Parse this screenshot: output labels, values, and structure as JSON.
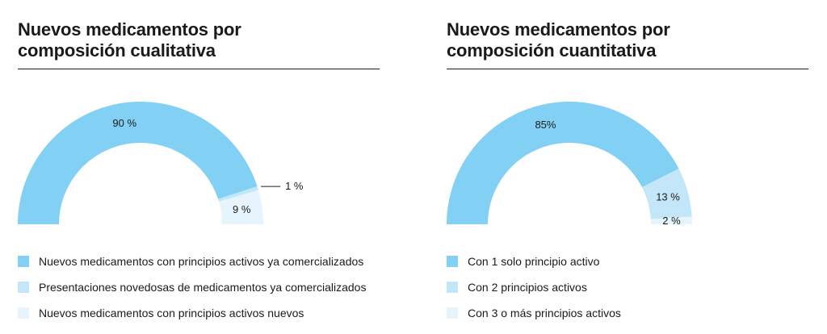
{
  "chart_data": [
    {
      "type": "pie",
      "shape": "half-donut",
      "title": "Nuevos medicamentos por composición cualitativa",
      "title_lines": [
        "Nuevos medicamentos por",
        "composición cualitativa"
      ],
      "slices": [
        {
          "label": "Nuevos medicamentos con principios activos ya comercializados",
          "value": 90,
          "value_label": "90 %",
          "color": "#82d0f4"
        },
        {
          "label": "Presentaciones novedosas de medicamentos ya comercializados",
          "value": 1,
          "value_label": "1 %",
          "color": "#c3e6f8"
        },
        {
          "label": "Nuevos medicamentos con principios activos nuevos",
          "value": 9,
          "value_label": "9 %",
          "color": "#e6f5fd"
        }
      ]
    },
    {
      "type": "pie",
      "shape": "half-donut",
      "title": "Nuevos medicamentos por composición cuantitativa",
      "title_lines": [
        "Nuevos medicamentos por",
        "composición cuantitativa"
      ],
      "slices": [
        {
          "label": "Con 1 solo principio activo",
          "value": 85,
          "value_label": "85%",
          "color": "#82d0f4"
        },
        {
          "label": "Con 2 principios activos",
          "value": 13,
          "value_label": "13 %",
          "color": "#c3e6f8"
        },
        {
          "label": "Con 3 o más principios activos",
          "value": 2,
          "value_label": "2 %",
          "color": "#e6f5fd"
        }
      ]
    }
  ]
}
